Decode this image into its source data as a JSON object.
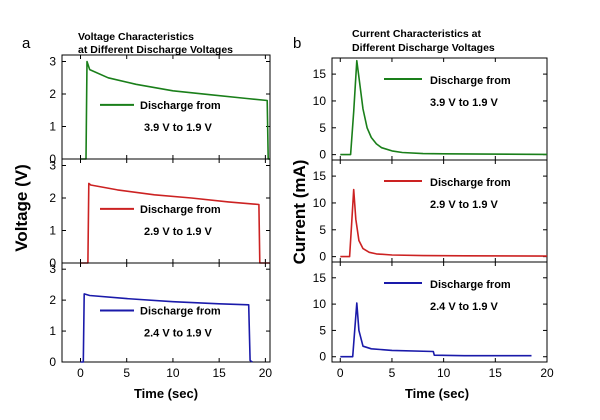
{
  "panels": [
    {
      "letter": "a",
      "title_lines": [
        "Voltage Characteristics",
        "at Different Discharge Voltages"
      ],
      "ylabel": "Voltage (V)",
      "xlabel": "Time (sec)"
    },
    {
      "letter": "b",
      "title_lines": [
        "Current Characteristics at",
        "Different Discharge Voltages"
      ],
      "ylabel": "Current (mA)",
      "xlabel": "Time (sec)"
    }
  ],
  "chart_data": [
    {
      "type": "line",
      "panel": "a",
      "title": "Voltage Characteristics at Different Discharge Voltages",
      "xlabel": "Time (sec)",
      "ylabel": "Voltage (V)",
      "xlim": [
        -2,
        20.5
      ],
      "xticks": [
        0,
        5,
        10,
        15,
        20
      ],
      "subplots": [
        {
          "ylim": [
            0,
            3.2
          ],
          "yticks": [
            0,
            1,
            2,
            3
          ],
          "legend": {
            "line1": "Discharge from",
            "line2": "3.9 V to 1.9 V"
          },
          "color": "#1a7f1a",
          "series": [
            {
              "x": [
                0,
                0.6,
                0.7,
                1.0,
                3,
                6,
                10,
                14,
                18,
                20.2,
                20.3,
                20.5
              ],
              "y": [
                0,
                0,
                3.0,
                2.75,
                2.5,
                2.3,
                2.1,
                1.98,
                1.86,
                1.8,
                0,
                0
              ]
            }
          ]
        },
        {
          "ylim": [
            0,
            3.2
          ],
          "yticks": [
            0,
            1,
            2,
            3
          ],
          "legend": {
            "line1": "Discharge from",
            "line2": "2.9 V to 1.9 V"
          },
          "color": "#cc2222",
          "series": [
            {
              "x": [
                0,
                0.8,
                0.9,
                1.1,
                4,
                8,
                12,
                16,
                19.3,
                19.4,
                20.5
              ],
              "y": [
                0,
                0,
                2.45,
                2.4,
                2.25,
                2.1,
                2.0,
                1.88,
                1.8,
                0,
                0
              ]
            }
          ]
        },
        {
          "ylim": [
            0,
            3.2
          ],
          "yticks": [
            0,
            1,
            2,
            3
          ],
          "legend": {
            "line1": "Discharge from",
            "line2": "2.4 V to 1.9 V"
          },
          "color": "#1a1aaa",
          "series": [
            {
              "x": [
                0,
                0.3,
                0.4,
                1.0,
                5,
                10,
                15,
                18.2,
                18.35,
                18.6
              ],
              "y": [
                0,
                0,
                2.2,
                2.15,
                2.05,
                1.95,
                1.88,
                1.85,
                0.05,
                0
              ]
            }
          ]
        }
      ]
    },
    {
      "type": "line",
      "panel": "b",
      "title": "Current Characteristics at Different Discharge Voltages",
      "xlabel": "Time (sec)",
      "ylabel": "Current (mA)",
      "xlim": [
        -0.8,
        20
      ],
      "xticks": [
        0,
        5,
        10,
        15,
        20
      ],
      "subplots": [
        {
          "ylim": [
            -1,
            18
          ],
          "yticks": [
            0,
            5,
            10,
            15
          ],
          "legend": {
            "line1": "Discharge from",
            "line2": "3.9 V to 1.9 V"
          },
          "color": "#1a7f1a",
          "series": [
            {
              "x": [
                0,
                1.0,
                1.3,
                1.6,
                1.9,
                2.2,
                2.6,
                3.0,
                3.5,
                4.0,
                5,
                6,
                8,
                10,
                14,
                20
              ],
              "y": [
                0,
                0,
                8,
                17.5,
                13,
                8.5,
                5,
                3.2,
                2.0,
                1.3,
                0.7,
                0.4,
                0.2,
                0.15,
                0.1,
                0.05
              ]
            }
          ]
        },
        {
          "ylim": [
            -1,
            18
          ],
          "yticks": [
            0,
            5,
            10,
            15
          ],
          "legend": {
            "line1": "Discharge from",
            "line2": "2.9 V to 1.9 V"
          },
          "color": "#cc2222",
          "series": [
            {
              "x": [
                0,
                0.9,
                1.1,
                1.3,
                1.5,
                1.8,
                2.2,
                2.8,
                3.5,
                5,
                8,
                12,
                20
              ],
              "y": [
                0,
                0,
                6,
                12.5,
                7,
                3,
                1.5,
                0.8,
                0.5,
                0.3,
                0.2,
                0.15,
                0.1
              ]
            }
          ]
        },
        {
          "ylim": [
            -1,
            18
          ],
          "yticks": [
            0,
            5,
            10,
            15
          ],
          "legend": {
            "line1": "Discharge from",
            "line2": "2.4 V to 1.9 V"
          },
          "color": "#1a1aaa",
          "series": [
            {
              "x": [
                0,
                1.2,
                1.4,
                1.6,
                1.8,
                2.2,
                3,
                5,
                9,
                9.1,
                12,
                18.5
              ],
              "y": [
                0,
                0,
                5,
                10.2,
                5,
                2.0,
                1.5,
                1.2,
                1.0,
                0.3,
                0.2,
                0.2
              ]
            }
          ]
        }
      ]
    }
  ]
}
